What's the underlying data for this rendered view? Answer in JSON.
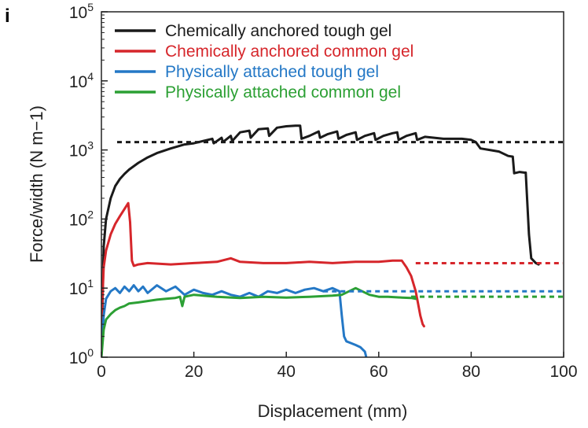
{
  "panel_label": "i",
  "chart_data": {
    "type": "line",
    "title": "",
    "xlabel": "Displacement (mm)",
    "ylabel": "Force/width (N m−1)",
    "xlim": [
      0,
      100
    ],
    "ylim": [
      1,
      100000
    ],
    "yscale": "log",
    "x_ticks": [
      0,
      20,
      40,
      60,
      80,
      100
    ],
    "y_ticks": [
      {
        "value": 1,
        "base": "10",
        "exp": "0"
      },
      {
        "value": 10,
        "base": "10",
        "exp": "1"
      },
      {
        "value": 100,
        "base": "10",
        "exp": "2"
      },
      {
        "value": 1000,
        "base": "10",
        "exp": "3"
      },
      {
        "value": 10000,
        "base": "10",
        "exp": "4"
      },
      {
        "value": 100000,
        "base": "10",
        "exp": "5"
      }
    ],
    "grid": false,
    "legend_position": "top-left",
    "series": [
      {
        "name": "Chemically anchored tough gel",
        "color": "#1a1a1a",
        "plateau": 1300,
        "x": [
          0,
          0.5,
          1,
          2,
          3,
          4,
          5,
          6,
          8,
          10,
          12,
          15,
          18,
          20,
          22,
          24,
          24.3,
          26,
          26.3,
          28,
          28.3,
          30,
          32,
          32.3,
          34,
          36,
          36.3,
          38,
          40,
          42,
          43,
          43.3,
          45,
          47,
          47.3,
          49,
          51,
          51.3,
          53,
          55,
          55.3,
          57,
          59,
          59.3,
          61,
          63,
          64,
          64.3,
          66,
          68,
          68.3,
          70,
          72,
          74,
          76,
          78,
          80,
          81,
          82,
          84,
          86,
          88,
          89,
          89.3,
          90.5,
          91.5,
          91.8,
          92.5,
          93,
          94,
          94.6
        ],
        "y": [
          1,
          40,
          100,
          200,
          300,
          380,
          450,
          520,
          650,
          780,
          900,
          1050,
          1200,
          1250,
          1350,
          1450,
          1250,
          1500,
          1300,
          1600,
          1350,
          1800,
          1900,
          1500,
          2000,
          2050,
          1600,
          2100,
          2200,
          2250,
          2250,
          1450,
          1600,
          1850,
          1500,
          1700,
          1850,
          1450,
          1650,
          1800,
          1400,
          1600,
          1750,
          1400,
          1600,
          1750,
          1800,
          1400,
          1600,
          1750,
          1400,
          1550,
          1500,
          1450,
          1450,
          1450,
          1400,
          1300,
          1050,
          1000,
          950,
          820,
          800,
          460,
          480,
          470,
          470,
          60,
          27,
          23,
          22
        ]
      },
      {
        "name": "Chemically anchored common gel",
        "color": "#d6262b",
        "plateau": 23,
        "x": [
          0,
          0.5,
          1,
          2,
          3,
          4,
          5,
          5.8,
          6.2,
          6.6,
          7,
          8,
          10,
          15,
          20,
          25,
          28,
          30,
          35,
          40,
          45,
          50,
          55,
          60,
          63,
          65,
          66,
          67,
          68,
          68.5,
          69,
          69.5,
          69.8
        ],
        "y": [
          3,
          20,
          35,
          60,
          85,
          110,
          140,
          170,
          90,
          25,
          21,
          22,
          23,
          22,
          23,
          24,
          27,
          24,
          23,
          23,
          24,
          23,
          24,
          24,
          25,
          25,
          20,
          15,
          9,
          6,
          4,
          3,
          2.8
        ]
      },
      {
        "name": "Physically attached tough gel",
        "color": "#2478c6",
        "plateau": 9,
        "x": [
          0,
          0.5,
          1,
          2,
          3,
          4,
          5,
          6,
          7,
          8,
          9,
          10,
          12,
          14,
          16,
          18,
          20,
          22,
          24,
          26,
          28,
          30,
          32,
          34,
          36,
          38,
          40,
          42,
          44,
          46,
          48,
          50,
          51.5,
          52,
          52.5,
          53,
          54,
          55,
          56,
          57,
          57.3
        ],
        "y": [
          1.3,
          4,
          7,
          9,
          10,
          8.5,
          10.5,
          9,
          11,
          9,
          10.5,
          8.5,
          11,
          9,
          10.5,
          8,
          9.5,
          8.5,
          8,
          9,
          8,
          7.5,
          8.5,
          7.5,
          9,
          8.5,
          9.5,
          8.5,
          9.5,
          10,
          9,
          10,
          9,
          4,
          2,
          1.7,
          1.6,
          1.5,
          1.4,
          1.2,
          1
        ]
      },
      {
        "name": "Physically attached common gel",
        "color": "#2ca034",
        "plateau": 7.5,
        "x": [
          0,
          0.5,
          1,
          2,
          3,
          4,
          5,
          6,
          8,
          10,
          12,
          14,
          16,
          17,
          17.5,
          18,
          20,
          25,
          30,
          35,
          40,
          45,
          50,
          52,
          55,
          58,
          60,
          62,
          65,
          67,
          68
        ],
        "y": [
          1,
          2.5,
          3.5,
          4.2,
          4.8,
          5.2,
          5.5,
          6,
          6.2,
          6.5,
          6.8,
          7,
          7.2,
          7.5,
          5.5,
          7.5,
          8,
          7.5,
          7.2,
          7.5,
          7.3,
          7.5,
          7.8,
          8,
          10,
          8,
          7.5,
          7.5,
          7.3,
          7.2,
          7
        ]
      }
    ]
  }
}
